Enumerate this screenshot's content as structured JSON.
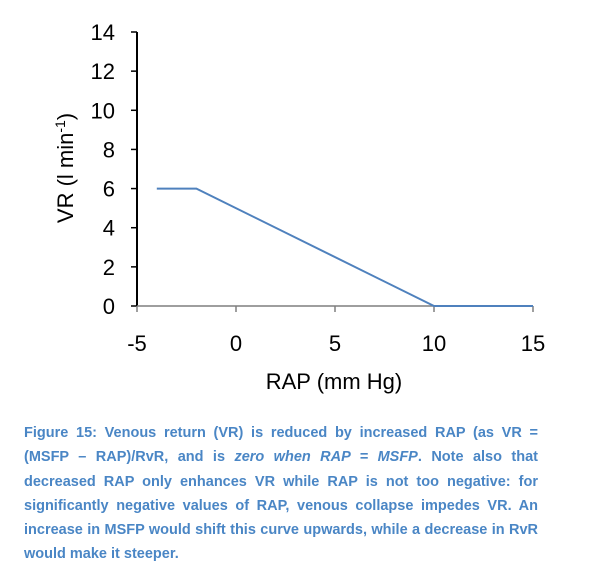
{
  "chart_data": {
    "type": "line",
    "xlabel": "RAP (mm Hg)",
    "ylabel_prefix": "VR (l min",
    "ylabel_sup": "-1",
    "ylabel_suffix": ")",
    "xlim": [
      -5,
      15
    ],
    "ylim": [
      0,
      14
    ],
    "xticks": [
      -5,
      0,
      5,
      10,
      15
    ],
    "yticks": [
      0,
      2,
      4,
      6,
      8,
      10,
      12,
      14
    ],
    "grid": false,
    "legend": "none",
    "series": [
      {
        "x": [
          -4,
          -2,
          10,
          15
        ],
        "y": [
          6,
          6,
          0,
          0
        ],
        "color": "#4f81bd"
      }
    ]
  },
  "caption": {
    "part1": "Figure 15: Venous return (VR) is reduced by increased RAP (as VR = (MSFP – RAP)/RvR, and is ",
    "emphasis": "zero when RAP = MSFP",
    "part2": ". Note also that decreased RAP only enhances VR while RAP is not too negative: for significantly negative values of RAP, venous collapse impedes VR. An increase in MSFP would shift this curve upwards, while a decrease in RvR would make it steeper.",
    "color": "#4a86c5"
  }
}
